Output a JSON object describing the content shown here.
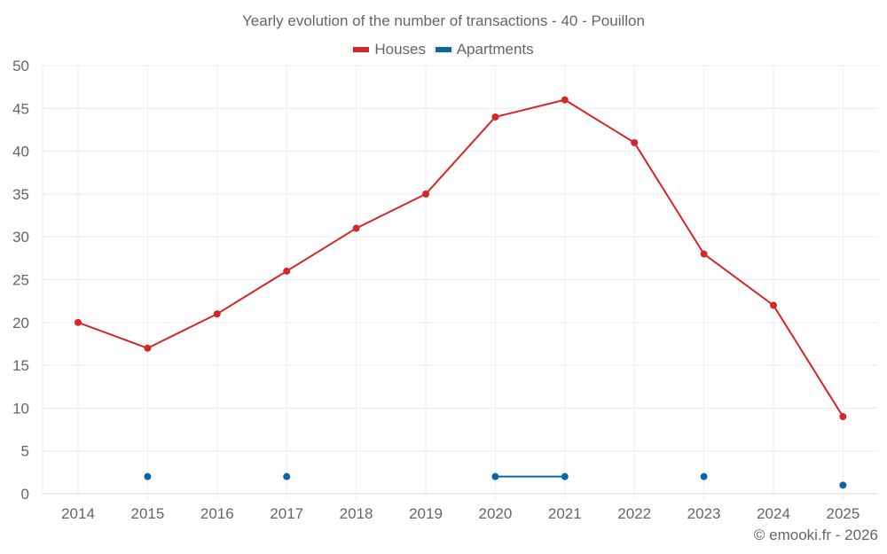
{
  "chart_data": {
    "type": "line",
    "title": "Yearly evolution of the number of transactions - 40 - Pouillon",
    "xlabel": "",
    "ylabel": "",
    "categories": [
      "2014",
      "2015",
      "2016",
      "2017",
      "2018",
      "2019",
      "2020",
      "2021",
      "2022",
      "2023",
      "2024",
      "2025"
    ],
    "ylim": [
      0,
      50
    ],
    "yticks": [
      0,
      5,
      10,
      15,
      20,
      25,
      30,
      35,
      40,
      45,
      50
    ],
    "grid": true,
    "legend_position": "top-center",
    "series": [
      {
        "name": "Houses",
        "color": "#d62728",
        "values": [
          20,
          17,
          21,
          26,
          31,
          35,
          44,
          46,
          41,
          28,
          22,
          9
        ]
      },
      {
        "name": "Apartments",
        "color": "#0a67a3",
        "values": [
          null,
          2,
          null,
          2,
          null,
          null,
          2,
          2,
          null,
          2,
          null,
          1
        ]
      }
    ]
  },
  "credit": "© emooki.fr - 2026"
}
